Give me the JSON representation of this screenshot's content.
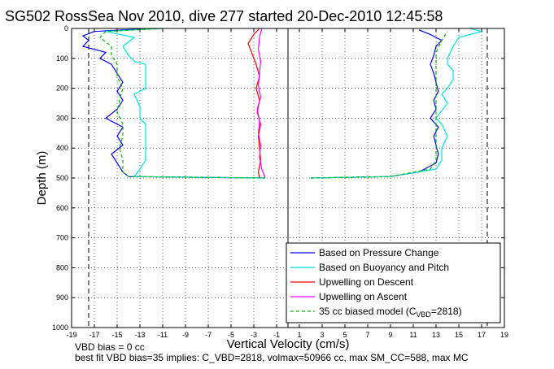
{
  "chart_data": {
    "type": "line",
    "title": "SG502 RossSea Nov 2010, dive 277 started 20-Dec-2010 12:45:58",
    "xlabel": "Vertical Velocity (cm/s)",
    "ylabel": "Depth (m)",
    "xlim": [
      -19,
      19
    ],
    "ylim": [
      0,
      1000
    ],
    "y_reversed": true,
    "x_ticks": [
      -19,
      -17,
      -15,
      -13,
      -11,
      -9,
      -7,
      -5,
      -3,
      -1,
      1,
      3,
      5,
      7,
      9,
      11,
      13,
      15,
      17,
      19
    ],
    "y_ticks": [
      0,
      100,
      200,
      300,
      400,
      500,
      600,
      700,
      800,
      900,
      1000
    ],
    "x_tick_labels": [
      "-19",
      "-17",
      "-15",
      "-13",
      "-11",
      "-9",
      "-7",
      "-5",
      "-3",
      "-1",
      "1",
      "3",
      "5",
      "7",
      "9",
      "11",
      "13",
      "15",
      "17",
      "19"
    ],
    "y_tick_labels": [
      "0",
      "100",
      "200",
      "300",
      "400",
      "500",
      "600",
      "700",
      "800",
      "900",
      "1000"
    ],
    "grid": true,
    "legend_position": "bottom-right",
    "vertical_reference_lines": [
      -17.5,
      0,
      17.5
    ],
    "series": [
      {
        "name": "Based on Pressure Change",
        "color": "#0000ff",
        "style": "solid",
        "descent": {
          "depth": [
            0,
            10,
            25,
            40,
            60,
            80,
            100,
            120,
            150,
            180,
            210,
            240,
            270,
            300,
            330,
            360,
            390,
            420,
            450,
            480,
            495,
            500
          ],
          "velocity": [
            -12,
            -17,
            -18,
            -17.5,
            -18,
            -16,
            -16.5,
            -15.5,
            -15,
            -14.5,
            -15,
            -14.5,
            -15,
            -16,
            -14.5,
            -15,
            -14.5,
            -15.5,
            -15,
            -14.5,
            -14,
            -2
          ]
        },
        "ascent": {
          "depth": [
            500,
            495,
            480,
            450,
            420,
            390,
            360,
            330,
            300,
            270,
            240,
            210,
            180,
            150,
            120,
            90,
            60,
            40,
            20,
            5
          ],
          "velocity": [
            2,
            9,
            11.5,
            13,
            13.2,
            13,
            12.8,
            13.2,
            12.5,
            13,
            12.8,
            13.2,
            13,
            12.8,
            12.5,
            12.8,
            13,
            13.5,
            12.5,
            11.5
          ]
        }
      },
      {
        "name": "Based on Buoyancy and Pitch",
        "color": "#00e5e5",
        "style": "solid",
        "descent": {
          "depth": [
            0,
            10,
            30,
            60,
            90,
            110,
            120,
            160,
            200,
            220,
            260,
            300,
            320,
            360,
            380,
            440,
            470,
            495,
            500
          ],
          "velocity": [
            -11,
            -16,
            -13.5,
            -14.5,
            -14,
            -13.5,
            -12.5,
            -12.5,
            -12.5,
            -13.5,
            -13,
            -13,
            -12.5,
            -12.5,
            -12.5,
            -12.5,
            -13,
            -13.5,
            -2
          ]
        },
        "ascent": {
          "depth": [
            500,
            495,
            470,
            440,
            400,
            360,
            320,
            300,
            250,
            220,
            200,
            170,
            140,
            120,
            100,
            60,
            30,
            10,
            0
          ],
          "velocity": [
            2,
            9,
            13,
            13.5,
            13.5,
            14,
            13.5,
            13,
            14,
            13.5,
            14,
            14.5,
            14.5,
            14,
            14,
            14.5,
            15,
            17,
            16
          ]
        }
      },
      {
        "name": "Upwelling on Descent",
        "color": "#ff0000",
        "style": "solid",
        "depth": [
          0,
          20,
          50,
          80,
          120,
          160,
          200,
          240,
          280,
          320,
          360,
          400,
          440,
          480,
          500
        ],
        "velocity": [
          -2.5,
          -3,
          -3.5,
          -3.2,
          -2.8,
          -2.5,
          -2.8,
          -2.5,
          -2.7,
          -2.4,
          -2.6,
          -2.5,
          -2.4,
          -2.6,
          -2.5
        ]
      },
      {
        "name": "Upwelling on Ascent",
        "color": "#ff00ff",
        "style": "solid",
        "depth": [
          500,
          470,
          430,
          390,
          350,
          310,
          270,
          230,
          190,
          150,
          110,
          70,
          30,
          0
        ],
        "velocity": [
          -2,
          -2.3,
          -2.5,
          -2.4,
          -2.6,
          -2.5,
          -2.7,
          -2.4,
          -2.6,
          -2.5,
          -2.4,
          -2.6,
          -2.5,
          -2.3
        ]
      },
      {
        "name": "35 cc biased model (C",
        "name_subscript": "VBD",
        "name_suffix": "=2818)",
        "color": "#00bb00",
        "style": "dashed",
        "descent": {
          "depth": [
            0,
            10,
            30,
            60,
            90,
            120,
            160,
            200,
            240,
            280,
            320,
            360,
            400,
            440,
            480,
            495,
            500
          ],
          "velocity": [
            -11,
            -16,
            -16.5,
            -15.5,
            -15.5,
            -15,
            -15,
            -14.5,
            -14.8,
            -15,
            -14.5,
            -14.5,
            -14.8,
            -14.5,
            -14.5,
            -14,
            -2
          ]
        },
        "ascent": {
          "depth": [
            500,
            495,
            470,
            440,
            400,
            360,
            320,
            280,
            240,
            200,
            160,
            120,
            80,
            40,
            10
          ],
          "velocity": [
            2,
            9,
            12.5,
            13,
            13,
            13,
            13,
            13,
            13,
            13,
            13,
            13,
            13,
            13.5,
            14
          ]
        }
      }
    ]
  },
  "notes": {
    "line1": "VBD bias = 0 cc",
    "line2": "best fit VBD bias=35 implies: C_VBD=2818, volmax=50966 cc, max SM_CC=588, max MC"
  }
}
